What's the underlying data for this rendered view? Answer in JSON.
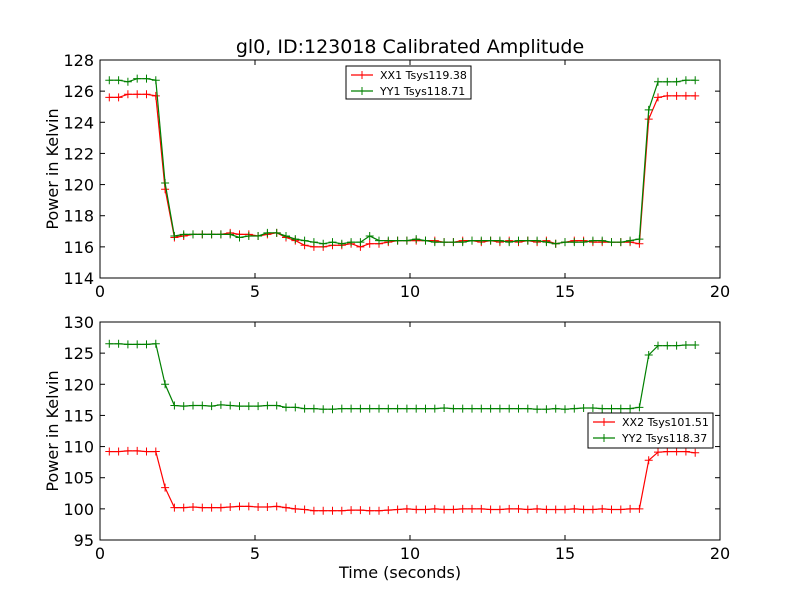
{
  "figure_title": "gl0, ID:123018 Calibrated Amplitude",
  "colors": {
    "red": "#ff0000",
    "green": "#008000"
  },
  "chart_data": [
    {
      "type": "line",
      "title": "gl0, ID:123018 Calibrated Amplitude",
      "xlabel": "",
      "ylabel": "Power in Kelvin",
      "xlim": [
        0,
        20
      ],
      "ylim": [
        114,
        128
      ],
      "xticks": [
        "0",
        "5",
        "10",
        "15",
        "20"
      ],
      "yticks": [
        "114",
        "116",
        "118",
        "120",
        "122",
        "124",
        "126",
        "128"
      ],
      "grid": false,
      "legend_position": "top-center",
      "x": [
        0.3,
        0.6,
        0.9,
        1.2,
        1.5,
        1.8,
        2.1,
        2.4,
        2.7,
        3.0,
        3.3,
        3.6,
        3.9,
        4.2,
        4.5,
        4.8,
        5.1,
        5.4,
        5.7,
        6.0,
        6.3,
        6.6,
        6.9,
        7.2,
        7.5,
        7.8,
        8.1,
        8.4,
        8.7,
        9.0,
        9.3,
        9.6,
        9.9,
        10.2,
        10.5,
        10.8,
        11.1,
        11.4,
        11.7,
        12.0,
        12.3,
        12.6,
        12.9,
        13.2,
        13.5,
        13.8,
        14.1,
        14.4,
        14.7,
        15.0,
        15.3,
        15.6,
        15.9,
        16.2,
        16.5,
        16.8,
        17.1,
        17.4,
        17.7,
        18.0,
        18.3,
        18.6,
        18.9,
        19.2
      ],
      "series": [
        {
          "name": "XX1 Tsys119.38",
          "color": "#ff0000",
          "values": [
            125.6,
            125.6,
            125.8,
            125.8,
            125.8,
            125.7,
            119.7,
            116.6,
            116.7,
            116.8,
            116.8,
            116.8,
            116.8,
            116.9,
            116.8,
            116.8,
            116.7,
            116.8,
            116.9,
            116.6,
            116.4,
            116.1,
            116.0,
            116.0,
            116.1,
            116.1,
            116.2,
            116.0,
            116.2,
            116.2,
            116.3,
            116.4,
            116.4,
            116.4,
            116.4,
            116.4,
            116.3,
            116.3,
            116.4,
            116.4,
            116.3,
            116.4,
            116.3,
            116.4,
            116.3,
            116.4,
            116.3,
            116.4,
            116.2,
            116.3,
            116.4,
            116.4,
            116.3,
            116.3,
            116.3,
            116.3,
            116.3,
            116.2,
            124.2,
            125.6,
            125.7,
            125.7,
            125.7,
            125.7
          ]
        },
        {
          "name": "YY1 Tsys118.71",
          "color": "#008000",
          "values": [
            126.7,
            126.7,
            126.6,
            126.8,
            126.8,
            126.7,
            120.1,
            116.7,
            116.8,
            116.8,
            116.8,
            116.8,
            116.8,
            116.8,
            116.6,
            116.7,
            116.7,
            116.9,
            116.9,
            116.7,
            116.5,
            116.4,
            116.3,
            116.2,
            116.3,
            116.2,
            116.3,
            116.3,
            116.7,
            116.4,
            116.4,
            116.4,
            116.4,
            116.5,
            116.4,
            116.3,
            116.3,
            116.3,
            116.3,
            116.4,
            116.4,
            116.4,
            116.4,
            116.3,
            116.4,
            116.4,
            116.4,
            116.3,
            116.2,
            116.3,
            116.3,
            116.3,
            116.4,
            116.4,
            116.3,
            116.3,
            116.4,
            116.5,
            124.8,
            126.6,
            126.6,
            126.6,
            126.7,
            126.7
          ]
        }
      ]
    },
    {
      "type": "line",
      "title": "",
      "xlabel": "Time (seconds)",
      "ylabel": "Power in Kelvin",
      "xlim": [
        0,
        20
      ],
      "ylim": [
        95,
        130
      ],
      "xticks": [
        "0",
        "5",
        "10",
        "15",
        "20"
      ],
      "yticks": [
        "95",
        "100",
        "105",
        "110",
        "115",
        "120",
        "125",
        "130"
      ],
      "grid": false,
      "legend_position": "center-right",
      "x": [
        0.3,
        0.6,
        0.9,
        1.2,
        1.5,
        1.8,
        2.1,
        2.4,
        2.7,
        3.0,
        3.3,
        3.6,
        3.9,
        4.2,
        4.5,
        4.8,
        5.1,
        5.4,
        5.7,
        6.0,
        6.3,
        6.6,
        6.9,
        7.2,
        7.5,
        7.8,
        8.1,
        8.4,
        8.7,
        9.0,
        9.3,
        9.6,
        9.9,
        10.2,
        10.5,
        10.8,
        11.1,
        11.4,
        11.7,
        12.0,
        12.3,
        12.6,
        12.9,
        13.2,
        13.5,
        13.8,
        14.1,
        14.4,
        14.7,
        15.0,
        15.3,
        15.6,
        15.9,
        16.2,
        16.5,
        16.8,
        17.1,
        17.4,
        17.7,
        18.0,
        18.3,
        18.6,
        18.9,
        19.2
      ],
      "series": [
        {
          "name": "XX2 Tsys101.51",
          "color": "#ff0000",
          "values": [
            109.2,
            109.2,
            109.3,
            109.3,
            109.2,
            109.2,
            103.4,
            100.2,
            100.2,
            100.3,
            100.2,
            100.2,
            100.2,
            100.3,
            100.4,
            100.4,
            100.3,
            100.3,
            100.4,
            100.2,
            100.0,
            99.9,
            99.7,
            99.7,
            99.7,
            99.7,
            99.8,
            99.8,
            99.7,
            99.7,
            99.8,
            99.9,
            100.0,
            99.9,
            99.9,
            100.0,
            99.9,
            99.9,
            100.0,
            100.0,
            100.0,
            99.9,
            99.9,
            100.0,
            100.0,
            99.9,
            100.0,
            99.9,
            99.9,
            99.9,
            100.0,
            99.9,
            99.9,
            100.0,
            99.9,
            99.9,
            100.0,
            100.0,
            107.8,
            109.1,
            109.2,
            109.2,
            109.2,
            109.0
          ]
        },
        {
          "name": "YY2 Tsys118.37",
          "color": "#008000",
          "values": [
            126.5,
            126.5,
            126.4,
            126.4,
            126.4,
            126.5,
            120.0,
            116.6,
            116.5,
            116.6,
            116.6,
            116.5,
            116.7,
            116.6,
            116.5,
            116.5,
            116.5,
            116.6,
            116.6,
            116.3,
            116.3,
            116.1,
            116.1,
            116.0,
            116.0,
            116.1,
            116.1,
            116.1,
            116.1,
            116.1,
            116.1,
            116.1,
            116.1,
            116.1,
            116.1,
            116.1,
            116.2,
            116.1,
            116.1,
            116.1,
            116.1,
            116.1,
            116.1,
            116.1,
            116.1,
            116.1,
            116.0,
            116.0,
            116.1,
            116.0,
            116.1,
            116.2,
            116.2,
            116.1,
            116.1,
            116.1,
            116.1,
            116.3,
            124.7,
            126.2,
            126.2,
            126.2,
            126.3,
            126.3
          ]
        }
      ]
    }
  ]
}
